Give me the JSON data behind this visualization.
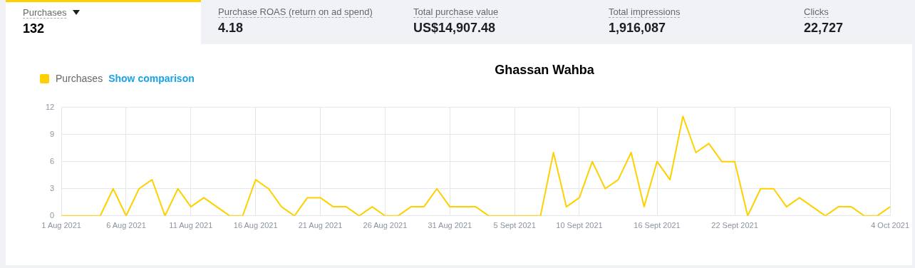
{
  "chart_data": {
    "type": "line",
    "title": "Ghassan Wahba",
    "annotations": [
      "Purchases",
      "132",
      "Purchase ROAS (return on ad spend)",
      "4.18",
      "Total purchase value",
      "US$14,907.48",
      "Total impressions",
      "1,916,087",
      "Clicks",
      "22,727",
      "Show comparison"
    ],
    "x": [
      "2021-08-01",
      "2021-08-02",
      "2021-08-03",
      "2021-08-04",
      "2021-08-05",
      "2021-08-06",
      "2021-08-07",
      "2021-08-08",
      "2021-08-09",
      "2021-08-10",
      "2021-08-11",
      "2021-08-12",
      "2021-08-13",
      "2021-08-14",
      "2021-08-15",
      "2021-08-16",
      "2021-08-17",
      "2021-08-18",
      "2021-08-19",
      "2021-08-20",
      "2021-08-21",
      "2021-08-22",
      "2021-08-23",
      "2021-08-24",
      "2021-08-25",
      "2021-08-26",
      "2021-08-27",
      "2021-08-28",
      "2021-08-29",
      "2021-08-30",
      "2021-08-31",
      "2021-09-01",
      "2021-09-02",
      "2021-09-03",
      "2021-09-04",
      "2021-09-05",
      "2021-09-06",
      "2021-09-07",
      "2021-09-08",
      "2021-09-09",
      "2021-09-10",
      "2021-09-11",
      "2021-09-12",
      "2021-09-13",
      "2021-09-14",
      "2021-09-15",
      "2021-09-16",
      "2021-09-17",
      "2021-09-18",
      "2021-09-19",
      "2021-09-20",
      "2021-09-21",
      "2021-09-22",
      "2021-09-23",
      "2021-09-24",
      "2021-09-25",
      "2021-09-26",
      "2021-09-27",
      "2021-09-28",
      "2021-09-29",
      "2021-09-30",
      "2021-10-01",
      "2021-10-02",
      "2021-10-03",
      "2021-10-04"
    ],
    "series": [
      {
        "name": "Purchases",
        "color": "#ffd000",
        "values": [
          0,
          0,
          0,
          0,
          3,
          0,
          3,
          4,
          0,
          3,
          1,
          2,
          1,
          0,
          0,
          4,
          3,
          1,
          0,
          2,
          2,
          1,
          1,
          0,
          1,
          0,
          0,
          1,
          1,
          3,
          1,
          1,
          1,
          0,
          0,
          0,
          0,
          0,
          7,
          1,
          2,
          6,
          3,
          4,
          7,
          1,
          6,
          4,
          11,
          7,
          8,
          6,
          6,
          0,
          3,
          3,
          1,
          2,
          1,
          0,
          1,
          1,
          0,
          0,
          1
        ]
      }
    ],
    "xlim": [
      "2021-08-01",
      "2021-10-04"
    ],
    "xticks": [
      {
        "value": "2021-08-01",
        "label": "1 Aug 2021"
      },
      {
        "value": "2021-08-06",
        "label": "6 Aug 2021"
      },
      {
        "value": "2021-08-11",
        "label": "11 Aug 2021"
      },
      {
        "value": "2021-08-16",
        "label": "16 Aug 2021"
      },
      {
        "value": "2021-08-21",
        "label": "21 Aug 2021"
      },
      {
        "value": "2021-08-26",
        "label": "26 Aug 2021"
      },
      {
        "value": "2021-08-31",
        "label": "31 Aug 2021"
      },
      {
        "value": "2021-09-05",
        "label": "5 Sept 2021"
      },
      {
        "value": "2021-09-10",
        "label": "10 Sept 2021"
      },
      {
        "value": "2021-09-16",
        "label": "16 Sept 2021"
      },
      {
        "value": "2021-09-22",
        "label": "22 Sept 2021"
      },
      {
        "value": "2021-10-04",
        "label": "4 Oct 2021"
      }
    ],
    "ylim": [
      0,
      12
    ],
    "yticks": [
      0,
      3,
      6,
      9,
      12
    ],
    "grid": true,
    "legend": "top left",
    "marker": "none",
    "line_style": "solid"
  }
}
